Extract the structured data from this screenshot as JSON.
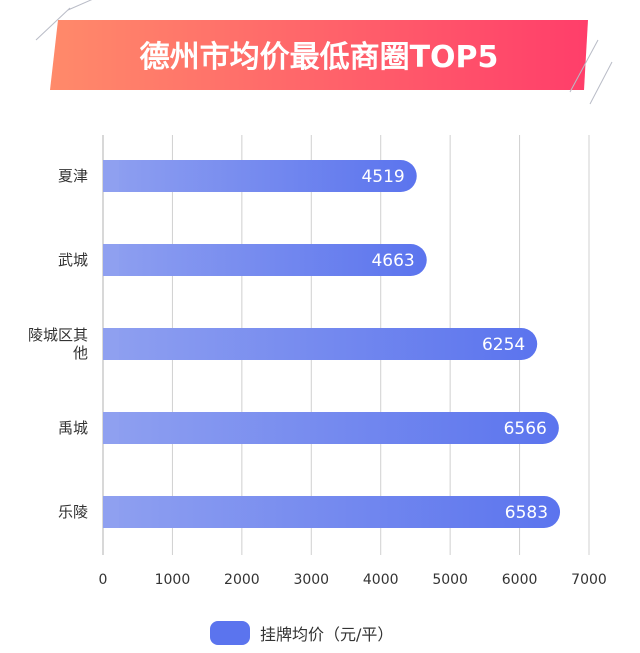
{
  "chart_data": {
    "type": "bar",
    "orientation": "horizontal",
    "title": "德州市均价最低商圈TOP5",
    "categories": [
      "夏津",
      "武城",
      "陵城区其他",
      "禹城",
      "乐陵"
    ],
    "category_lines": [
      [
        "夏津"
      ],
      [
        "武城"
      ],
      [
        "陵城区其",
        "他"
      ],
      [
        "禹城"
      ],
      [
        "乐陵"
      ]
    ],
    "series": [
      {
        "name": "挂牌均价（元/平）",
        "values": [
          4519,
          4663,
          6254,
          6566,
          6583
        ]
      }
    ],
    "xlim": [
      0,
      7000
    ],
    "xticks": [
      0,
      1000,
      2000,
      3000,
      4000,
      5000,
      6000,
      7000
    ],
    "grid": true,
    "legend": "bottom",
    "colors": {
      "bar_start": "#8fa0f0",
      "bar_end": "#5b74ee",
      "banner_start": "#ff8a6a",
      "banner_end": "#ff3e6a",
      "grid": "#d0d0d0"
    }
  }
}
